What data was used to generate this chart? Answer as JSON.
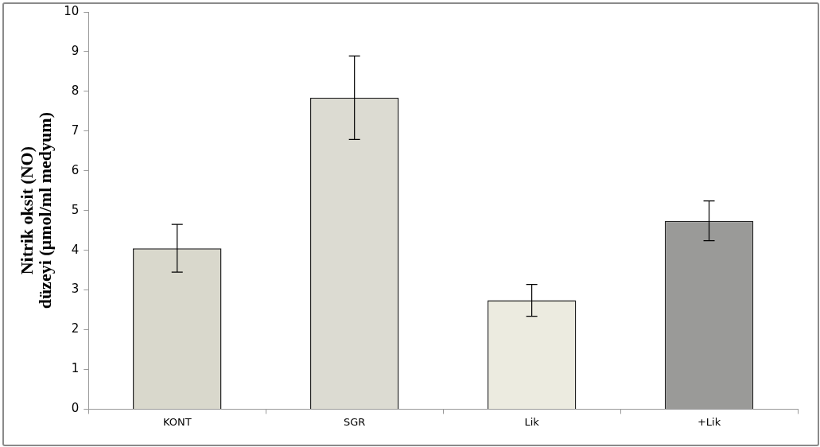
{
  "chart_data": {
    "type": "bar",
    "ylabel": "Nitrik oksit (NO)\ndüzeyi (µmol/ml medyum)",
    "categories": [
      "KONT",
      "SGR",
      "Lik",
      "+Lik"
    ],
    "values": [
      4.05,
      7.84,
      2.74,
      4.74
    ],
    "errors": [
      0.6,
      1.05,
      0.4,
      0.5
    ],
    "colors": [
      "#d9d8cc",
      "#dcdbd2",
      "#ecebe0",
      "#9a9a98"
    ],
    "ylim": [
      0,
      10
    ],
    "yticks": [
      0,
      1,
      2,
      3,
      4,
      5,
      6,
      7,
      8,
      9,
      10
    ],
    "grid": false,
    "legend": false
  }
}
